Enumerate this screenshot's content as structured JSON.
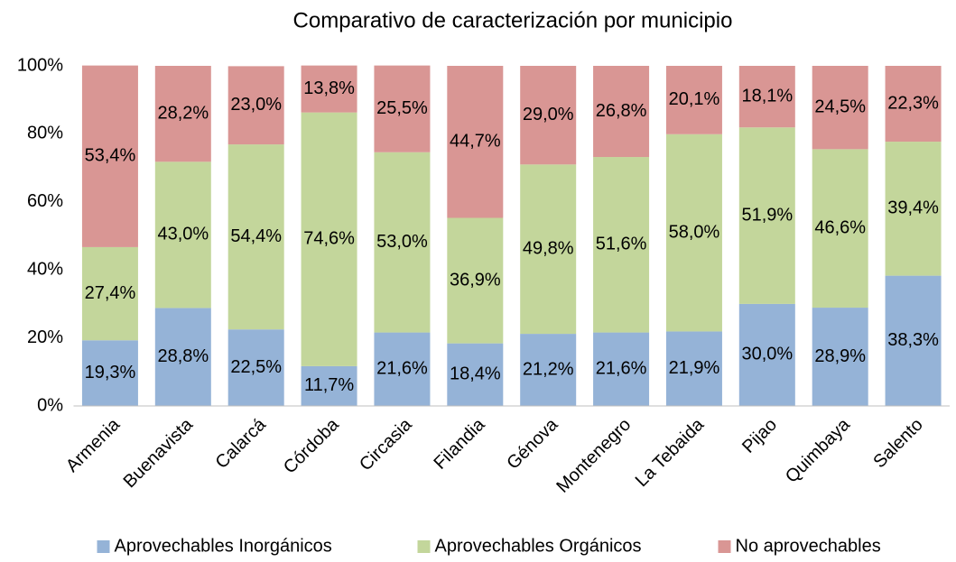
{
  "chart_data": {
    "type": "stacked_bar",
    "title": "Comparativo de caracterización por municipio",
    "categories": [
      "Armenia",
      "Buenavista",
      "Calarcá",
      "Córdoba",
      "Circasia",
      "Filandia",
      "Génova",
      "Montenegro",
      "La Tebaida",
      "Pijao",
      "Quimbaya",
      "Salento"
    ],
    "series": [
      {
        "name": "Aprovechables Inorgánicos",
        "color": "#95b3d7",
        "values": [
          19.3,
          28.8,
          22.5,
          11.7,
          21.6,
          18.4,
          21.2,
          21.6,
          21.9,
          30.0,
          28.9,
          38.3
        ],
        "value_labels": [
          "19,3%",
          "28,8%",
          "22,5%",
          "11,7%",
          "21,6%",
          "18,4%",
          "21,2%",
          "21,6%",
          "21,9%",
          "30,0%",
          "28,9%",
          "38,3%"
        ]
      },
      {
        "name": "Aprovechables Orgánicos",
        "color": "#c3d69b",
        "values": [
          27.4,
          43.0,
          54.4,
          74.6,
          53.0,
          36.9,
          49.8,
          51.6,
          58.0,
          51.9,
          46.6,
          39.4
        ],
        "value_labels": [
          "27,4%",
          "43,0%",
          "54,4%",
          "74,6%",
          "53,0%",
          "36,9%",
          "49,8%",
          "51,6%",
          "58,0%",
          "51,9%",
          "46,6%",
          "39,4%"
        ]
      },
      {
        "name": "No aprovechables",
        "color": "#d99694",
        "values": [
          53.4,
          28.2,
          23.0,
          13.8,
          25.5,
          44.7,
          29.0,
          26.8,
          20.1,
          18.1,
          24.5,
          22.3
        ],
        "value_labels": [
          "53,4%",
          "28,2%",
          "23,0%",
          "13,8%",
          "25,5%",
          "44,7%",
          "29,0%",
          "26,8%",
          "20,1%",
          "18,1%",
          "24,5%",
          "22,3%"
        ]
      }
    ],
    "ylim": [
      0,
      100
    ],
    "yticks": [
      {
        "value": 0,
        "label": "0%"
      },
      {
        "value": 20,
        "label": "20%"
      },
      {
        "value": 40,
        "label": "40%"
      },
      {
        "value": 60,
        "label": "60%"
      },
      {
        "value": 80,
        "label": "80%"
      },
      {
        "value": 100,
        "label": "100%"
      }
    ],
    "grid": false,
    "legend": "bottom"
  }
}
